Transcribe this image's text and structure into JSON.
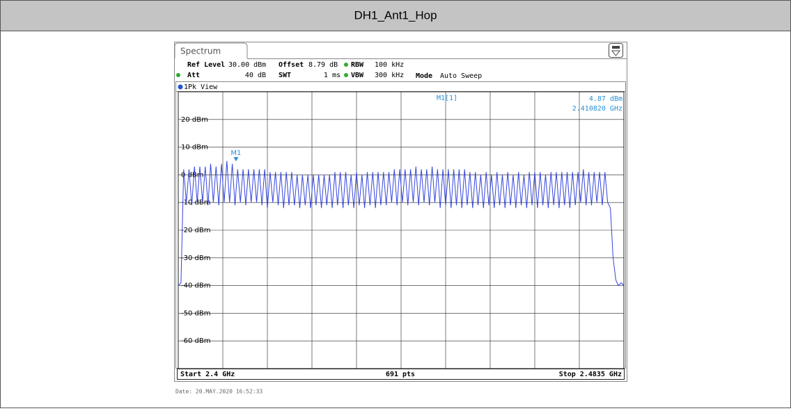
{
  "header": {
    "title": "DH1_Ant1_Hop"
  },
  "screen": {
    "tab": "Spectrum",
    "settings": {
      "row1": [
        "Ref Level",
        "30.00 dBm",
        "Offset",
        "8.79 dB",
        "RBW",
        "100 kHz"
      ],
      "row2": [
        "Att",
        "40 dB",
        "SWT",
        "1 ms",
        "VBW",
        "300 kHz",
        "Mode",
        "Auto Sweep"
      ]
    },
    "view": "1Pk View",
    "marker": {
      "label": "M1",
      "readout": "M1[1]",
      "level": "4.87 dBm",
      "frequency": "2.410820 GHz"
    },
    "ylim": [
      -70,
      30
    ],
    "yticks": [
      {
        "value": 20,
        "label": "20 dBm"
      },
      {
        "value": 10,
        "label": "10 dBm"
      },
      {
        "value": 0,
        "label": "0 dBm"
      },
      {
        "value": -10,
        "label": "-10 dBm"
      },
      {
        "value": -20,
        "label": "-20 dBm"
      },
      {
        "value": -30,
        "label": "-30 dBm"
      },
      {
        "value": -40,
        "label": "-40 dBm"
      },
      {
        "value": -50,
        "label": "-50 dBm"
      },
      {
        "value": -60,
        "label": "-60 dBm"
      }
    ],
    "trace": {
      "color": "#3344dd",
      "values": [
        -40,
        -39,
        2,
        -10,
        2,
        -11,
        3,
        -10,
        3,
        -10,
        3,
        -11,
        4,
        -10,
        3,
        -11,
        4,
        -10,
        5,
        -10,
        4,
        -11,
        2,
        -10,
        2,
        -11,
        2,
        -10,
        2,
        -10,
        2,
        -11,
        2,
        -12,
        1,
        -10,
        1,
        -11,
        1,
        -12,
        1,
        -11,
        1,
        -11,
        0,
        -12,
        0,
        -11,
        0,
        -12,
        0,
        -11,
        0,
        -12,
        0,
        -11,
        0,
        -12,
        1,
        -11,
        1,
        -12,
        1,
        -11,
        0,
        -12,
        1,
        -11,
        0,
        -12,
        1,
        -11,
        1,
        -12,
        1,
        -11,
        1,
        -11,
        1,
        -10,
        2,
        -11,
        2,
        -10,
        2,
        -11,
        2,
        -10,
        3,
        -11,
        2,
        -10,
        2,
        -11,
        3,
        -10,
        2,
        -12,
        2,
        -11,
        2,
        -12,
        2,
        -11,
        2,
        -12,
        2,
        -11,
        1,
        -12,
        1,
        -11,
        0,
        -12,
        1,
        -11,
        0,
        -12,
        1,
        -11,
        0,
        -12,
        1,
        -11,
        0,
        -12,
        1,
        -11,
        0,
        -12,
        1,
        -11,
        1,
        -12,
        1,
        -11,
        0,
        -12,
        1,
        -11,
        1,
        -12,
        1,
        -11,
        1,
        -12,
        1,
        -11,
        1,
        -10,
        2,
        -11,
        1,
        -11,
        1,
        -10,
        1,
        -11,
        1,
        -10,
        -12,
        -30,
        -38,
        -40,
        -39,
        -40
      ]
    },
    "start": "Start 2.4 GHz",
    "points": "691 pts",
    "stop": "Stop 2.4835 GHz",
    "date": "Date: 20.MAY.2020  16:52:33"
  }
}
